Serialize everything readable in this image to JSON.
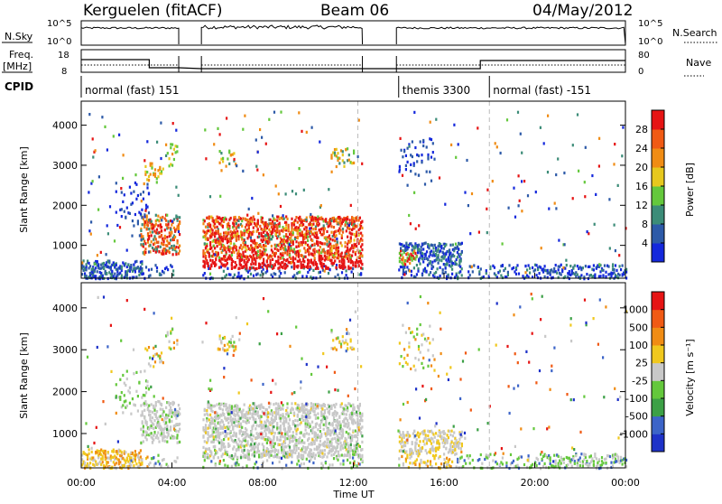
{
  "header": {
    "station": "Kerguelen (fitACF)",
    "beam": "Beam 06",
    "date": "04/May/2012"
  },
  "panels": {
    "nsky_label": "N.Sky",
    "nsearch_label": "N.Search",
    "freq_label": "Freq.",
    "freq_unit": "[MHz]",
    "nave_label": "Nave",
    "cpid_label": "CPID",
    "nsky_ticks": [
      "10^5",
      "10^0"
    ],
    "freq_ticks": [
      "18",
      "8"
    ],
    "nave_ticks": [
      "80",
      "0"
    ]
  },
  "cpid_segments": [
    {
      "label": "normal (fast) 151",
      "start_hour": 0,
      "end_hour": 14
    },
    {
      "label": "themis 3300",
      "start_hour": 14,
      "end_hour": 18
    },
    {
      "label": "normal (fast) -151",
      "start_hour": 18,
      "end_hour": 24
    }
  ],
  "chart_data": [
    {
      "type": "heatmap",
      "name": "power",
      "ylabel": "Slant Range [km]",
      "xlabel": "Time UT",
      "x_ticks": [
        "00:00",
        "04:00",
        "08:00",
        "12:00",
        "16:00",
        "20:00",
        "00:00"
      ],
      "xlim_hours": [
        0,
        24
      ],
      "y_ticks": [
        "1000",
        "2000",
        "3000",
        "4000"
      ],
      "ylim": [
        180,
        4600
      ],
      "colorbar_label": "Power [dB]",
      "colorbar_ticks": [
        "4",
        "8",
        "12",
        "16",
        "20",
        "24",
        "28"
      ],
      "colorbar_range": [
        0,
        32
      ],
      "colors": [
        "#1428dc",
        "#2d5aa8",
        "#3c8c78",
        "#64c83c",
        "#e6c81e",
        "#f08c14",
        "#f05a14",
        "#e61414"
      ],
      "data_gaps_hours": [
        [
          4.3,
          5.3
        ],
        [
          12.4,
          13.9
        ]
      ],
      "dashed_marker_hours": [
        12.2,
        18.0
      ]
    },
    {
      "type": "heatmap",
      "name": "velocity",
      "ylabel": "Slant Range [km]",
      "xlabel": "Time UT",
      "x_ticks": [
        "00:00",
        "04:00",
        "08:00",
        "12:00",
        "16:00",
        "20:00",
        "00:00"
      ],
      "xlim_hours": [
        0,
        24
      ],
      "y_ticks": [
        "1000",
        "2000",
        "3000",
        "4000"
      ],
      "ylim": [
        180,
        4600
      ],
      "colorbar_label": "Velocity [m s⁻¹]",
      "colorbar_ticks": [
        "1000",
        "500",
        "100",
        "25",
        "-25",
        "-100",
        "-500",
        "-1000"
      ],
      "colors": [
        "#1e32c8",
        "#3c64c8",
        "#3ca046",
        "#64c83c",
        "#c8c8c8",
        "#f0c81e",
        "#f08c14",
        "#f05a14",
        "#e61414"
      ],
      "data_gaps_hours": [
        [
          4.3,
          5.3
        ],
        [
          12.4,
          13.9
        ]
      ],
      "dashed_marker_hours": [
        12.2,
        18.0
      ]
    }
  ]
}
